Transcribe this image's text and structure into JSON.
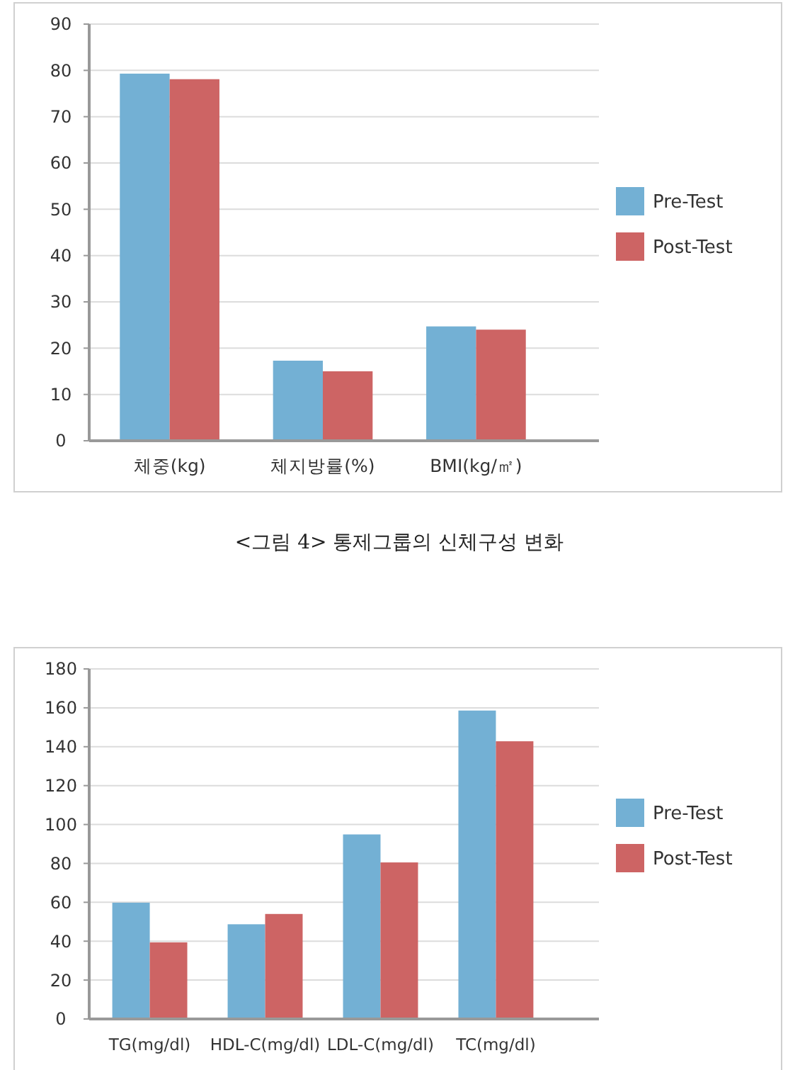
{
  "chart_data": [
    {
      "type": "bar",
      "categories": [
        "체중(kg)",
        "체지방률(%)",
        "BMI(kg/㎡)"
      ],
      "series": [
        {
          "name": "Pre-Test",
          "color": "#73b0d4",
          "values": [
            79.3,
            17.3,
            24.7
          ]
        },
        {
          "name": "Post-Test",
          "color": "#cd6464",
          "values": [
            78.1,
            15.0,
            24.0
          ]
        }
      ],
      "ylim": [
        0,
        90
      ],
      "yticks": [
        0,
        10,
        20,
        30,
        40,
        50,
        60,
        70,
        80,
        90
      ],
      "grid": "y",
      "legend": "right",
      "annotations": [
        "<그림 4> 통제그룹의 신체구성 변화"
      ]
    },
    {
      "type": "bar",
      "categories": [
        "TG(mg/dl)",
        "HDL-C(mg/dl)",
        "LDL-C(mg/dl)",
        "TC(mg/dl)"
      ],
      "series": [
        {
          "name": "Pre-Test",
          "color": "#73b0d4",
          "values": [
            59.8,
            48.7,
            94.9,
            158.6
          ]
        },
        {
          "name": "Post-Test",
          "color": "#cd6464",
          "values": [
            39.4,
            54.0,
            80.5,
            142.8
          ]
        }
      ],
      "ylim": [
        0,
        180
      ],
      "yticks": [
        0,
        20,
        40,
        60,
        80,
        100,
        120,
        140,
        160,
        180
      ],
      "grid": "y",
      "legend": "right"
    }
  ]
}
